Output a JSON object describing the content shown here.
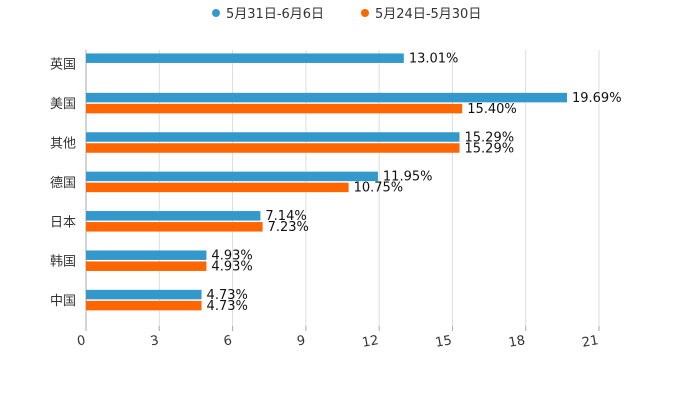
{
  "chart_data": {
    "type": "bar",
    "orientation": "horizontal",
    "categories": [
      "英国",
      "美国",
      "其他",
      "德国",
      "日本",
      "韩国",
      "中国"
    ],
    "series": [
      {
        "name": "5月31日-6月6日",
        "color": "#3399cc",
        "values": [
          13.01,
          19.69,
          15.29,
          11.95,
          7.14,
          4.93,
          4.73
        ],
        "labels": [
          "13.01%",
          "19.69%",
          "15.29%",
          "11.95%",
          "7.14%",
          "4.93%",
          "4.73%"
        ]
      },
      {
        "name": "5月24日-5月30日",
        "color": "#ff6600",
        "values": [
          null,
          15.4,
          15.29,
          10.75,
          7.23,
          4.93,
          4.73
        ],
        "labels": [
          null,
          "15.40%",
          "15.29%",
          "10.75%",
          "7.23%",
          "4.93%",
          "4.73%"
        ]
      }
    ],
    "xlim": [
      0,
      21
    ],
    "xticks": [
      "0",
      "3",
      "6",
      "9",
      "12",
      "15",
      "18",
      "21"
    ],
    "legend_position": "top-center",
    "grid": true
  }
}
